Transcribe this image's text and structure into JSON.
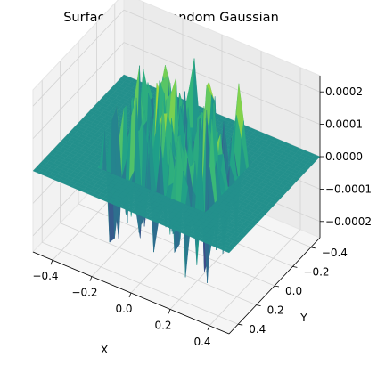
{
  "chart_data": {
    "type": "surface",
    "title": "Surface Plot of Random Gaussian",
    "xlabel": "X",
    "ylabel": "Y",
    "zlabel": "",
    "xlim": [
      -0.5,
      0.5
    ],
    "ylim": [
      -0.5,
      0.5
    ],
    "zlim": [
      -0.00025,
      0.00025
    ],
    "x_ticks": [
      "−0.4",
      "−0.2",
      "0.0",
      "0.2",
      "0.4"
    ],
    "y_ticks": [
      "−0.4",
      "−0.2",
      "0.0",
      "0.2",
      "0.4"
    ],
    "z_ticks": [
      "−0.0002",
      "−0.0001",
      "0.0000",
      "0.0001",
      "0.0002"
    ],
    "x_tick_values": [
      -0.4,
      -0.2,
      0.0,
      0.2,
      0.4
    ],
    "y_tick_values": [
      -0.4,
      -0.2,
      0.0,
      0.2,
      0.4
    ],
    "z_tick_values": [
      -0.0002,
      -0.0001,
      0.0,
      0.0001,
      0.0002
    ],
    "grid": true,
    "colormap": "viridis",
    "surface": {
      "grid_range": [
        -0.5,
        0.5
      ],
      "flat_level": 0.0,
      "noisy_region": [
        -0.25,
        0.25
      ],
      "noise_amplitude": 0.00023
    }
  }
}
